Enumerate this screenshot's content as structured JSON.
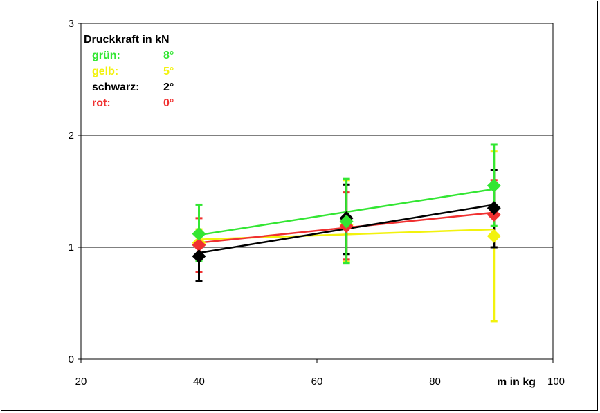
{
  "chart_data": {
    "type": "scatter",
    "title": "",
    "xlabel": "m in kg",
    "ylabel": "",
    "xlim": [
      20,
      100
    ],
    "ylim": [
      0,
      3
    ],
    "xticks": [
      "20",
      "40",
      "60",
      "80",
      "100"
    ],
    "yticks": [
      "0",
      "1",
      "2",
      "3"
    ],
    "grid": "horizontal major lines",
    "legend": {
      "title": "Druckkraft in kN",
      "placement": "top-left",
      "entries": [
        {
          "label": "grün:",
          "value": "8°",
          "color": "#33e633"
        },
        {
          "label": "gelb:",
          "value": "5°",
          "color": "#f2f20d"
        },
        {
          "label": "schwarz:",
          "value": "2°",
          "color": "#000000"
        },
        {
          "label": "rot:",
          "value": "0°",
          "color": "#f03030"
        }
      ]
    },
    "series": [
      {
        "name": "grün",
        "color": "#33e633",
        "points": [
          {
            "x": 40,
            "y": 1.12,
            "err_low": 0.88,
            "err_high": 1.38
          },
          {
            "x": 65,
            "y": 1.23,
            "err_low": 0.86,
            "err_high": 1.61
          },
          {
            "x": 90,
            "y": 1.55,
            "err_low": 1.19,
            "err_high": 1.92
          }
        ],
        "trend": [
          [
            40,
            1.11
          ],
          [
            90,
            1.52
          ]
        ]
      },
      {
        "name": "gelb",
        "color": "#f2f20d",
        "points": [
          {
            "x": 40,
            "y": 1.04,
            "err_low": 0.92,
            "err_high": 1.16
          },
          {
            "x": 65,
            "y": 1.2,
            "err_low": 0.87,
            "err_high": 1.6
          },
          {
            "x": 90,
            "y": 1.1,
            "err_low": 0.34,
            "err_high": 1.86
          }
        ],
        "trend": [
          [
            40,
            1.07
          ],
          [
            90,
            1.16
          ]
        ]
      },
      {
        "name": "schwarz",
        "color": "#000000",
        "points": [
          {
            "x": 40,
            "y": 0.92,
            "err_low": 0.7,
            "err_high": 1.14
          },
          {
            "x": 65,
            "y": 1.26,
            "err_low": 0.94,
            "err_high": 1.56
          },
          {
            "x": 90,
            "y": 1.35,
            "err_low": 1.0,
            "err_high": 1.69
          }
        ],
        "trend": [
          [
            40,
            0.95
          ],
          [
            90,
            1.38
          ]
        ]
      },
      {
        "name": "rot",
        "color": "#f03030",
        "points": [
          {
            "x": 40,
            "y": 1.02,
            "err_low": 0.78,
            "err_high": 1.26
          },
          {
            "x": 65,
            "y": 1.19,
            "err_low": 0.89,
            "err_high": 1.49
          },
          {
            "x": 90,
            "y": 1.29,
            "err_low": 1.0,
            "err_high": 1.6
          }
        ],
        "trend": [
          [
            40,
            1.04
          ],
          [
            90,
            1.31
          ]
        ]
      }
    ]
  }
}
